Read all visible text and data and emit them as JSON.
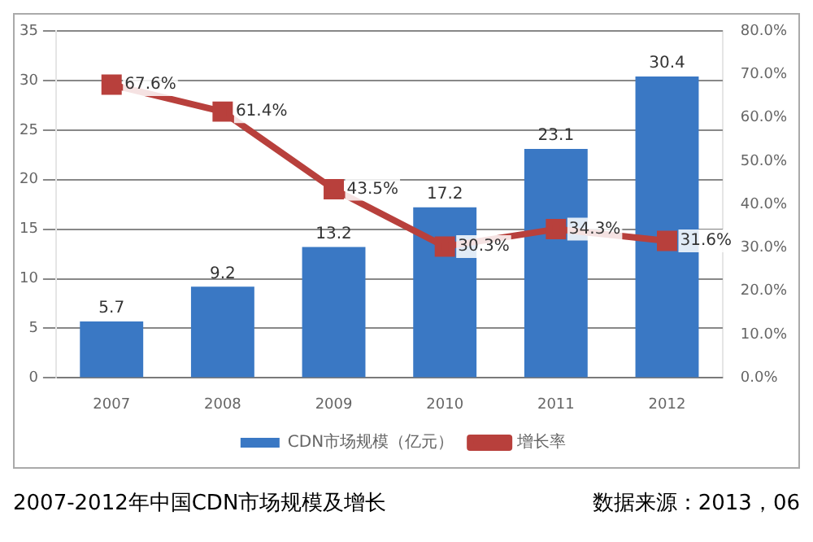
{
  "chart_data": {
    "type": "bar",
    "categories": [
      "2007",
      "2008",
      "2009",
      "2010",
      "2011",
      "2012"
    ],
    "series": [
      {
        "name": "CDN市场规模（亿元）",
        "color": "#3a78c4",
        "values": [
          5.7,
          9.2,
          13.2,
          17.2,
          23.1,
          30.4
        ],
        "value_labels": [
          "5.7",
          "9.2",
          "13.2",
          "17.2",
          "23.1",
          "30.4"
        ]
      },
      {
        "name": "增长率",
        "type": "line",
        "axis": "y2",
        "color": "#b8403c",
        "values": [
          67.6,
          61.4,
          43.5,
          30.3,
          34.3,
          31.6
        ],
        "value_labels": [
          "67.6%",
          "61.4%",
          "43.5%",
          "30.3%",
          "34.3%",
          "31.6%"
        ]
      }
    ],
    "ylim": [
      0,
      35
    ],
    "yticks": [
      0,
      5,
      10,
      15,
      20,
      25,
      30,
      35
    ],
    "y2lim": [
      0,
      80
    ],
    "y2ticks": [
      {
        "value": 0,
        "label": "0.0%"
      },
      {
        "value": 10,
        "label": "10.0%"
      },
      {
        "value": 20,
        "label": "20.0%"
      },
      {
        "value": 30,
        "label": "30.0%"
      },
      {
        "value": 40,
        "label": "40.0%"
      },
      {
        "value": 50,
        "label": "50.0%"
      },
      {
        "value": 60,
        "label": "60.0%"
      },
      {
        "value": 70,
        "label": "70.0%"
      },
      {
        "value": 80,
        "label": "80.0%"
      }
    ],
    "grid": "y",
    "legend": "bottom",
    "marker": "square",
    "line_style": "solid",
    "annotations": [
      "2007-2012年中国CDN市场规模及增长",
      "数据来源：2013，06"
    ]
  }
}
